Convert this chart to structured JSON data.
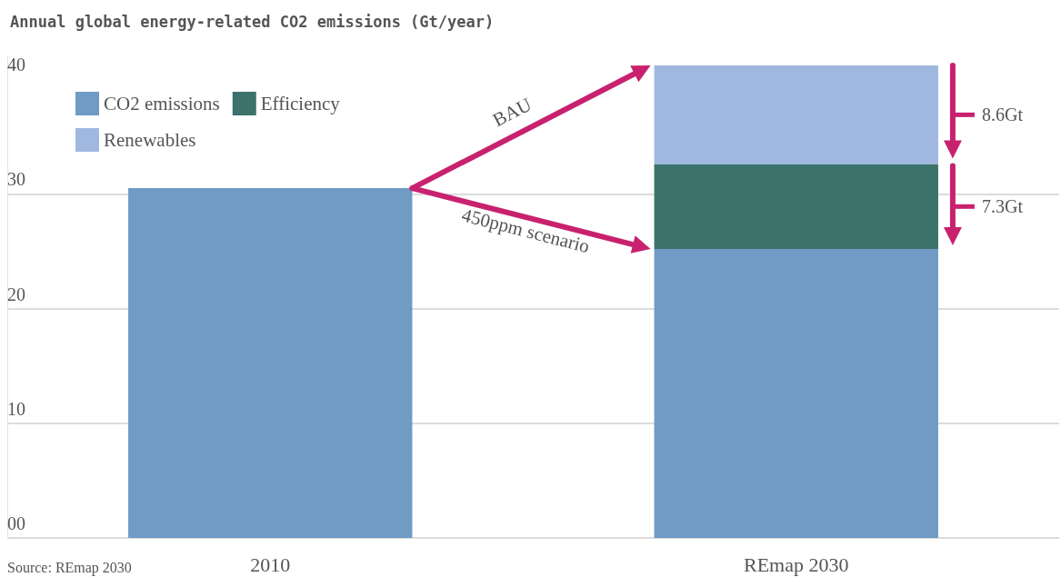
{
  "chart_data": {
    "type": "bar",
    "title": "Annual global energy-related CO2 emissions (Gt/year)",
    "categories": [
      "2010",
      "REmap 2030"
    ],
    "stacked": true,
    "series": [
      {
        "name": "CO2 emissions",
        "color": "#6f9bc4",
        "values": [
          30.5,
          25.2
        ]
      },
      {
        "name": "Efficiency",
        "color": "#3c726c",
        "values": [
          null,
          7.4
        ]
      },
      {
        "name": "Renewables",
        "color": "#a0b8e0",
        "values": [
          null,
          8.6
        ]
      }
    ],
    "ylim": [
      0,
      42
    ],
    "yticks": [
      {
        "value": 0,
        "label": "00"
      },
      10,
      20,
      30,
      40
    ],
    "grid": "y",
    "legend": "top left",
    "annotations": [
      "BAU",
      "450ppm scenario",
      "8.6Gt",
      "7.3Gt",
      "Source: REmap 2030"
    ]
  }
}
